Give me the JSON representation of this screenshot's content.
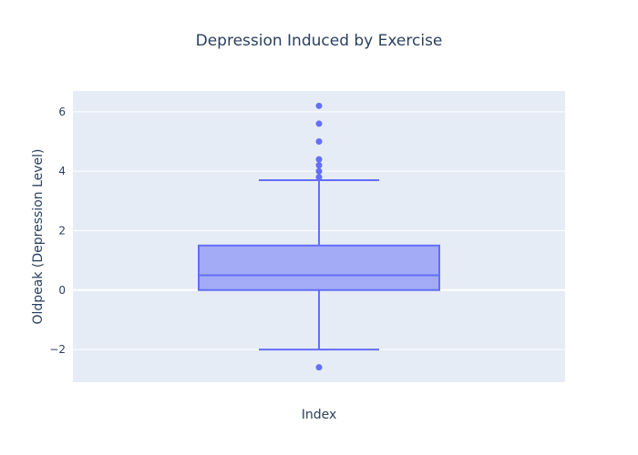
{
  "chart_data": {
    "type": "box",
    "title": "Depression Induced by Exercise",
    "xlabel": "Index",
    "ylabel": "Oldpeak (Depression Level)",
    "y_ticks": [
      "−2",
      "0",
      "2",
      "4",
      "6"
    ],
    "ylim": [
      -3.1,
      6.7
    ],
    "grid": true,
    "box": {
      "lower_whisker": -2.0,
      "q1": 0.0,
      "median": 0.5,
      "q3": 1.5,
      "upper_whisker": 3.7
    },
    "outliers": [
      6.2,
      5.6,
      5.0,
      4.4,
      4.2,
      4.0,
      3.8,
      -2.6
    ],
    "colors": {
      "plot_bg": "#e5ecf6",
      "grid": "#ffffff",
      "box_line": "#636efa",
      "box_fill": "#a3abf6",
      "text": "#2a3f5f"
    }
  }
}
